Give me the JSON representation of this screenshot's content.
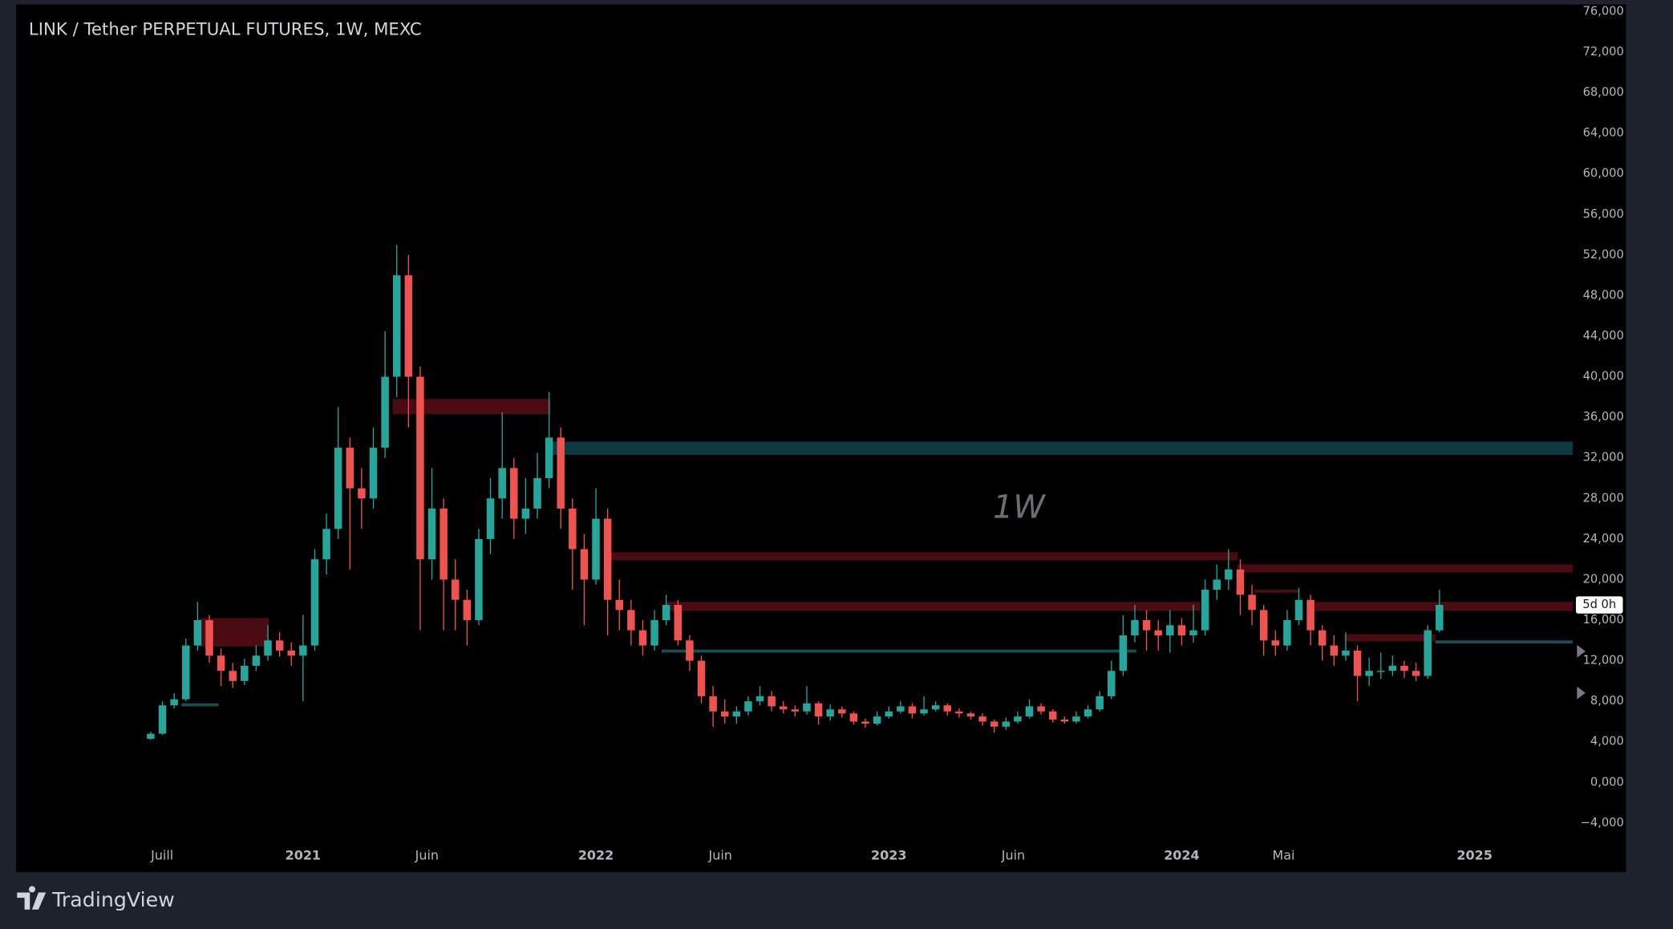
{
  "chart_data": {
    "type": "candlestick",
    "title": "LINK / Tether PERPETUAL FUTURES, 1W, MEXC",
    "watermark": "1W",
    "countdown": "5d 0h",
    "up_color": "#26a69a",
    "down_color": "#ef5350",
    "grid": false,
    "xlim": [
      2020.02,
      2025.335
    ],
    "ylim": [
      -5800,
      76700
    ],
    "xticks": [
      {
        "value": 2020.519,
        "label": "Juill"
      },
      2021,
      {
        "value": 2021.423,
        "label": "Juin"
      },
      2022,
      {
        "value": 2022.425,
        "label": "Juin"
      },
      2023,
      {
        "value": 2023.425,
        "label": "Juin"
      },
      2024,
      {
        "value": 2024.348,
        "label": "Mai"
      },
      2025
    ],
    "yticks": [
      {
        "value": 76000,
        "label": "76,000"
      },
      {
        "value": 72000,
        "label": "72,000"
      },
      {
        "value": 68000,
        "label": "68,000"
      },
      {
        "value": 64000,
        "label": "64,000"
      },
      {
        "value": 60000,
        "label": "60,000"
      },
      {
        "value": 56000,
        "label": "56,000"
      },
      {
        "value": 52000,
        "label": "52,000"
      },
      {
        "value": 48000,
        "label": "48,000"
      },
      {
        "value": 44000,
        "label": "44,000"
      },
      {
        "value": 40000,
        "label": "40,000"
      },
      {
        "value": 36000,
        "label": "36,000"
      },
      {
        "value": 32000,
        "label": "32,000"
      },
      {
        "value": 28000,
        "label": "28,000"
      },
      {
        "value": 24000,
        "label": "24,000"
      },
      {
        "value": 20000,
        "label": "20,000"
      },
      {
        "value": 16000,
        "label": "16,000"
      },
      {
        "value": 12000,
        "label": "12,000"
      },
      {
        "value": 8000,
        "label": "8,000"
      },
      {
        "value": 4000,
        "label": "4,000"
      },
      {
        "value": 0,
        "label": "0,000"
      },
      {
        "value": -4000,
        "label": "−4,000"
      }
    ],
    "x": [
      2020.48,
      2020.52,
      2020.56,
      2020.6,
      2020.64,
      2020.68,
      2020.72,
      2020.76,
      2020.8,
      2020.84,
      2020.88,
      2020.92,
      2020.96,
      2021.0,
      2021.04,
      2021.08,
      2021.12,
      2021.16,
      2021.2,
      2021.24,
      2021.28,
      2021.32,
      2021.36,
      2021.4,
      2021.44,
      2021.48,
      2021.52,
      2021.56,
      2021.6,
      2021.64,
      2021.68,
      2021.72,
      2021.76,
      2021.8,
      2021.84,
      2021.88,
      2021.92,
      2021.96,
      2022.0,
      2022.04,
      2022.08,
      2022.12,
      2022.16,
      2022.2,
      2022.24,
      2022.28,
      2022.32,
      2022.36,
      2022.4,
      2022.44,
      2022.48,
      2022.52,
      2022.56,
      2022.6,
      2022.64,
      2022.68,
      2022.72,
      2022.76,
      2022.8,
      2022.84,
      2022.88,
      2022.92,
      2022.96,
      2023.0,
      2023.04,
      2023.08,
      2023.12,
      2023.16,
      2023.2,
      2023.24,
      2023.28,
      2023.32,
      2023.36,
      2023.4,
      2023.44,
      2023.48,
      2023.52,
      2023.56,
      2023.6,
      2023.64,
      2023.68,
      2023.72,
      2023.76,
      2023.8,
      2023.84,
      2023.88,
      2023.92,
      2023.96,
      2024.0,
      2024.04,
      2024.08,
      2024.12,
      2024.16,
      2024.2,
      2024.24,
      2024.28,
      2024.32,
      2024.36,
      2024.4,
      2024.44,
      2024.48,
      2024.52,
      2024.56,
      2024.6,
      2024.64,
      2024.68,
      2024.72,
      2024.76,
      2024.8,
      2024.84,
      2024.88
    ],
    "open": [
      4300,
      4800,
      7600,
      8200,
      13500,
      16000,
      12500,
      11000,
      10000,
      11500,
      12500,
      14000,
      13000,
      12500,
      13500,
      22000,
      25000,
      33000,
      29000,
      28000,
      33000,
      40000,
      50000,
      40000,
      22000,
      27000,
      20000,
      18000,
      16000,
      24000,
      28000,
      31000,
      26000,
      27000,
      30000,
      34000,
      27000,
      23000,
      20000,
      26000,
      18000,
      17000,
      15000,
      13500,
      16000,
      17500,
      14000,
      12000,
      8500,
      7000,
      6500,
      7000,
      8000,
      8500,
      7500,
      7200,
      7000,
      7800,
      6500,
      7200,
      6800,
      6000,
      5800,
      6500,
      7000,
      7500,
      6800,
      7200,
      7600,
      7000,
      6800,
      6500,
      6000,
      5500,
      6000,
      6500,
      7500,
      7000,
      6200,
      6000,
      6500,
      7200,
      8500,
      11000,
      14500,
      16000,
      15000,
      14500,
      15500,
      14500,
      15000,
      19000,
      20000,
      21000,
      18500,
      17000,
      14000,
      13500,
      16000,
      18000,
      15000,
      13500,
      12500,
      13000,
      10500,
      11000,
      11000,
      11500,
      11000,
      10500,
      15000
    ],
    "high": [
      5000,
      8000,
      8800,
      14200,
      17800,
      16500,
      13200,
      11800,
      12200,
      13500,
      15500,
      14800,
      13800,
      16500,
      23000,
      26500,
      37000,
      34000,
      31000,
      35000,
      44500,
      53000,
      52000,
      41000,
      31000,
      28000,
      22000,
      19000,
      25000,
      30000,
      36500,
      32000,
      30000,
      32500,
      38500,
      35000,
      28000,
      24500,
      29000,
      27000,
      20000,
      18000,
      16000,
      17000,
      18500,
      18000,
      14500,
      12500,
      9500,
      8200,
      7500,
      8500,
      9500,
      9000,
      8000,
      7600,
      9500,
      8000,
      7700,
      7500,
      7000,
      6300,
      7000,
      7500,
      8000,
      7800,
      8500,
      8000,
      7800,
      7300,
      7000,
      6800,
      6200,
      6400,
      7000,
      8200,
      7800,
      7200,
      6500,
      7000,
      7600,
      9000,
      12000,
      16500,
      17500,
      17000,
      16000,
      17000,
      16200,
      17500,
      20000,
      21500,
      23000,
      22000,
      19500,
      17500,
      15000,
      17000,
      19200,
      18500,
      15500,
      14500,
      14800,
      13500,
      12300,
      12800,
      12500,
      12000,
      11800,
      15500,
      19000
    ],
    "low": [
      4200,
      4700,
      7300,
      8000,
      13000,
      11800,
      9500,
      9300,
      9600,
      11000,
      12000,
      12400,
      11500,
      8000,
      13000,
      20500,
      24000,
      21000,
      25000,
      27000,
      32000,
      38000,
      35000,
      15000,
      20000,
      15000,
      15000,
      13500,
      15500,
      22500,
      26000,
      24000,
      24500,
      26000,
      29000,
      25000,
      19000,
      15500,
      19500,
      14500,
      15000,
      13500,
      12500,
      13000,
      15500,
      13500,
      11000,
      7800,
      5500,
      5800,
      5800,
      6600,
      7600,
      7000,
      6800,
      6500,
      6700,
      5700,
      6100,
      6400,
      5700,
      5400,
      5600,
      6300,
      6800,
      6300,
      6600,
      7000,
      6600,
      6400,
      6200,
      5600,
      4900,
      5200,
      5800,
      6300,
      6700,
      5900,
      5800,
      5800,
      6300,
      7000,
      8200,
      10500,
      13800,
      13000,
      13000,
      12800,
      13500,
      13800,
      14500,
      18000,
      19000,
      16500,
      15500,
      12500,
      12500,
      13000,
      15500,
      13500,
      12000,
      11500,
      12000,
      8000,
      9500,
      10200,
      10500,
      10300,
      10000,
      10200,
      14800
    ],
    "close": [
      4800,
      7600,
      8200,
      13500,
      16000,
      12500,
      11000,
      10000,
      11500,
      12500,
      14000,
      13000,
      12500,
      13500,
      22000,
      25000,
      33000,
      29000,
      28000,
      33000,
      40000,
      50000,
      40000,
      22000,
      27000,
      20000,
      18000,
      16000,
      24000,
      28000,
      31000,
      26000,
      27000,
      30000,
      34000,
      27000,
      23000,
      20000,
      26000,
      18000,
      17000,
      15000,
      13500,
      16000,
      17500,
      14000,
      12000,
      8500,
      7000,
      6500,
      7000,
      8000,
      8500,
      7500,
      7200,
      7000,
      7800,
      6500,
      7200,
      6800,
      6000,
      5800,
      6500,
      7000,
      7500,
      6800,
      7200,
      7600,
      7000,
      6800,
      6500,
      6000,
      5500,
      6000,
      6500,
      7500,
      7000,
      6200,
      6000,
      6500,
      7200,
      8500,
      11000,
      14500,
      16000,
      15000,
      14500,
      15500,
      14500,
      15000,
      19000,
      20000,
      21000,
      18500,
      17000,
      14000,
      13500,
      16000,
      18000,
      15000,
      13500,
      12500,
      13000,
      10500,
      11000,
      11000,
      11500,
      11000,
      10500,
      15000,
      17500
    ],
    "zones": [
      {
        "x0": 2020.643,
        "x1": 2020.883,
        "y0": 13400,
        "y1": 16200,
        "color": "#4a0c12"
      },
      {
        "x0": 2021.306,
        "x1": 2021.845,
        "y0": 36300,
        "y1": 37800,
        "color": "#4a0c12"
      },
      {
        "x0": 2021.845,
        "x1": 2025.335,
        "y0": 32300,
        "y1": 33600,
        "color": "#0d3a42"
      },
      {
        "x0": 2022.035,
        "x1": 2024.191,
        "y0": 21900,
        "y1": 22700,
        "color": "#4a0c12"
      },
      {
        "x0": 2024.191,
        "x1": 2025.335,
        "y0": 20700,
        "y1": 21500,
        "color": "#4a0c12"
      },
      {
        "x0": 2022.242,
        "x1": 2024.064,
        "y0": 16900,
        "y1": 17800,
        "color": "#4a0c12"
      },
      {
        "x0": 2024.428,
        "x1": 2025.335,
        "y0": 16900,
        "y1": 17800,
        "color": "#4a0c12"
      },
      {
        "x0": 2024.245,
        "x1": 2024.402,
        "y0": 18700,
        "y1": 19000,
        "color": "#4a0c12"
      },
      {
        "x0": 2022.224,
        "x1": 2023.845,
        "y0": 12800,
        "y1": 13100,
        "color": "#1a4d56"
      },
      {
        "x0": 2024.556,
        "x1": 2024.866,
        "y0": 13900,
        "y1": 14600,
        "color": "#4a0c12"
      },
      {
        "x0": 2024.866,
        "x1": 2025.335,
        "y0": 13700,
        "y1": 14000,
        "color": "#1a4d56"
      },
      {
        "x0": 2020.585,
        "x1": 2020.712,
        "y0": 7500,
        "y1": 7800,
        "color": "#1a4d56"
      }
    ]
  },
  "footer": {
    "brand": "TradingView"
  }
}
